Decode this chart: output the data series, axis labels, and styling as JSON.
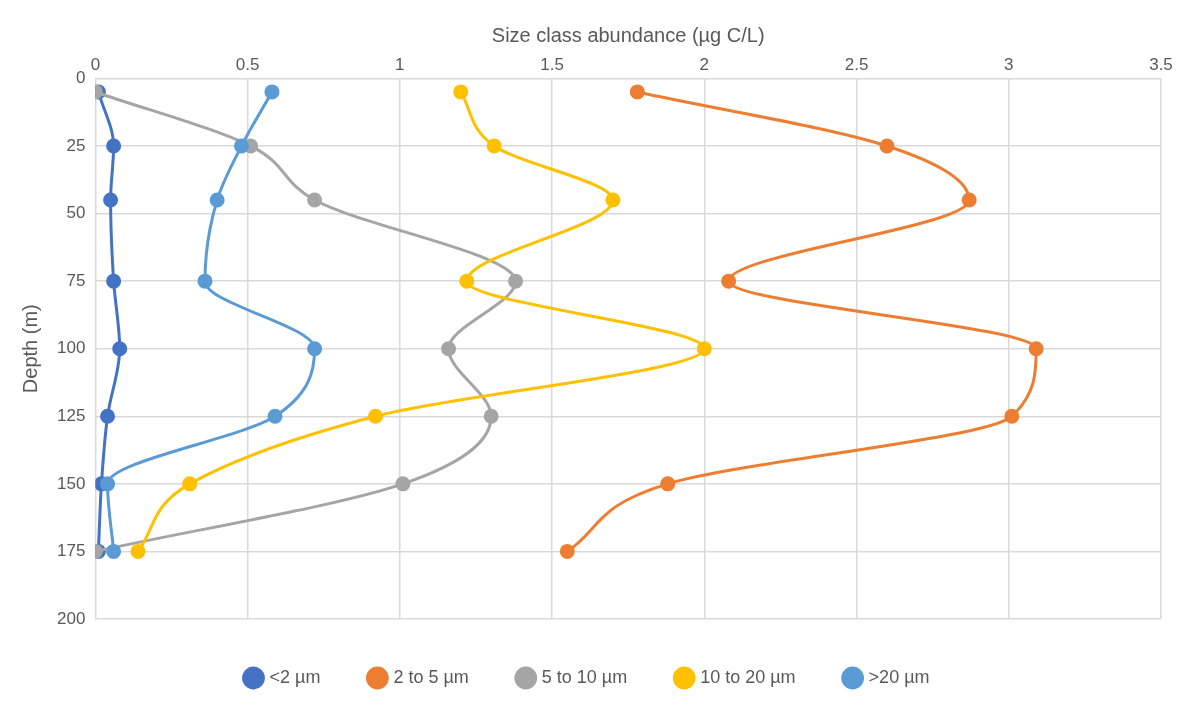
{
  "chart_data": {
    "type": "line",
    "xlabel": "Size class abundance (µg C/L)",
    "ylabel": "Depth (m)",
    "xlim": [
      0,
      3.5
    ],
    "xticks": [
      0,
      0.5,
      1,
      1.5,
      2,
      2.5,
      3,
      3.5
    ],
    "ylim": [
      200,
      0
    ],
    "yticks": [
      0,
      25,
      50,
      75,
      100,
      125,
      150,
      175,
      200
    ],
    "grid": true,
    "legend": "bottom",
    "marker": "circle",
    "line_style": "solid",
    "series": [
      {
        "name": "<2 µm",
        "color": "#4472c4",
        "x": [
          0.01,
          0.06,
          0.05,
          0.06,
          0.08,
          0.04,
          0.02,
          0.01
        ],
        "values": [
          5,
          25,
          45,
          75,
          100,
          125,
          150,
          175
        ]
      },
      {
        "name": "2 to 5 µm",
        "color": "#ed7d31",
        "x": [
          1.78,
          2.6,
          2.87,
          2.08,
          3.09,
          3.01,
          1.88,
          1.55
        ],
        "values": [
          5,
          25,
          45,
          75,
          100,
          125,
          150,
          175
        ]
      },
      {
        "name": "5 to 10 µm",
        "color": "#a5a5a5",
        "x": [
          0,
          0.51,
          0.72,
          1.38,
          1.16,
          1.3,
          1.01,
          0
        ],
        "values": [
          5,
          25,
          45,
          75,
          100,
          125,
          150,
          175
        ]
      },
      {
        "name": "10 to 20 µm",
        "color": "#ffc000",
        "x": [
          1.2,
          1.31,
          1.7,
          1.22,
          2.0,
          0.92,
          0.31,
          0.14
        ],
        "values": [
          5,
          25,
          45,
          75,
          100,
          125,
          150,
          175
        ]
      },
      {
        "name": ">20 µm",
        "color": "#5b9bd5",
        "x": [
          0.58,
          0.48,
          0.4,
          0.36,
          0.72,
          0.59,
          0.04,
          0.06
        ],
        "values": [
          5,
          25,
          45,
          75,
          100,
          125,
          150,
          175
        ]
      }
    ]
  }
}
